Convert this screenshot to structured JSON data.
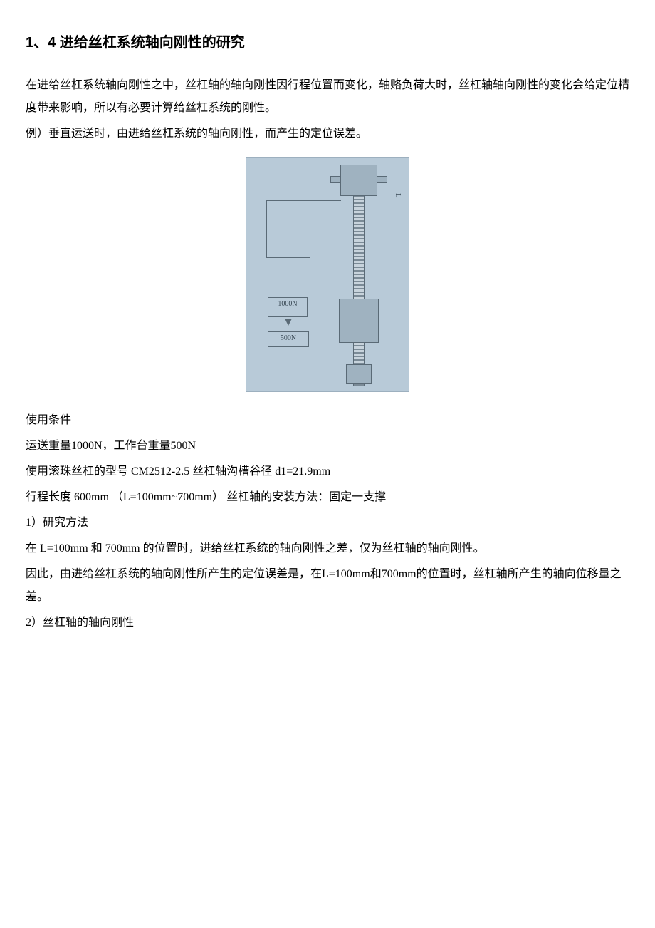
{
  "title": "1、4 进给丝杠系统轴向刚性的研究",
  "intro": {
    "p1": "在进给丝杠系统轴向刚性之中，丝杠轴的轴向刚性因行程位置而变化，轴赂负荷大时，丝杠轴轴向刚性的变化会给定位精度带来影响，所以有必要计算给丝杠系统的刚性。",
    "p2": "例）垂直运送时，由进给丝杠系统的轴向刚性，而产生的定位误差。"
  },
  "diagram": {
    "force_main": "1000N",
    "force_table": "500N",
    "dim_label": "L",
    "colors": {
      "bg": "#b8cad8",
      "outline": "#5a6a76",
      "block": "#9fb2c0"
    }
  },
  "conditions": {
    "heading": "使用条件",
    "l1": "运送重量1000N，工作台重量500N",
    "l2": "使用滚珠丝杠的型号  CM2512-2.5 丝杠轴沟槽谷径  d1=21.9mm",
    "l3": "行程长度  600mm （L=100mm~700mm）  丝杠轴的安装方法：固定一支撑"
  },
  "section1": {
    "num": "1）研究方法",
    "p1": "在  L=100mm 和  700mm 的位置时，进给丝杠系统的轴向刚性之差，仅为丝杠轴的轴向刚性。",
    "p2": "因此，由进给丝杠系统的轴向刚性所产生的定位误差是，在L=100mm和700mm的位置时，丝杠轴所产生的轴向位移量之差。"
  },
  "section2": {
    "num": "2）丝杠轴的轴向刚性"
  }
}
